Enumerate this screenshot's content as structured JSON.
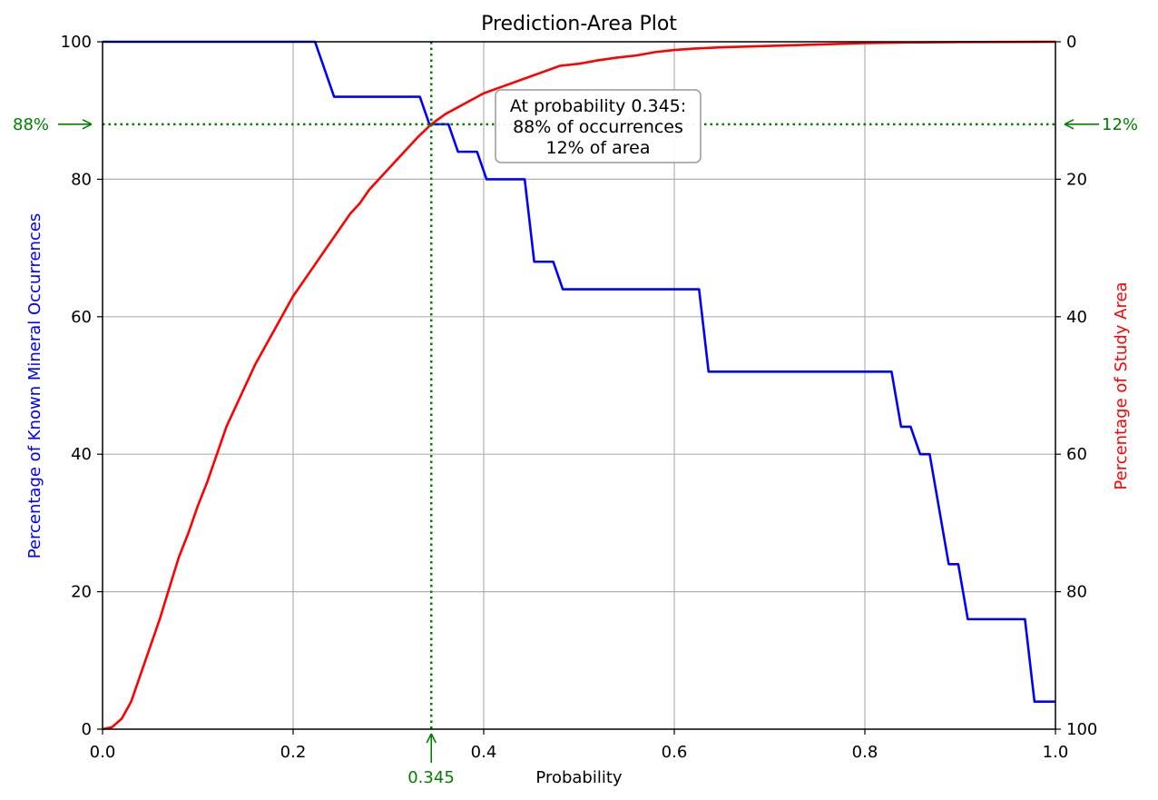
{
  "chart_data": {
    "type": "line",
    "title": "Prediction-Area Plot",
    "xlabel": "Probability",
    "ylabel_left": "Percentage of Known Mineral Occurrences",
    "ylabel_right": "Percentage of Study Area",
    "xlim": [
      0,
      1
    ],
    "ylim_left": [
      0,
      100
    ],
    "ylim_right": [
      100,
      0
    ],
    "grid": true,
    "x_ticks": [
      "0.0",
      "0.2",
      "0.4",
      "0.6",
      "0.8",
      "1.0"
    ],
    "y_ticks_left": [
      "0",
      "20",
      "40",
      "60",
      "80",
      "100"
    ],
    "y_ticks_right": [
      "100",
      "80",
      "60",
      "40",
      "20",
      "0"
    ],
    "colors": {
      "occurrences": "#0000ff",
      "area": "#ff0000",
      "intersection": "#008000",
      "grid": "#b0b0b0"
    },
    "series": [
      {
        "axis": "left",
        "color": "#0000ff",
        "points": [
          [
            0,
            100
          ],
          [
            0.223,
            100
          ],
          [
            0.243,
            92
          ],
          [
            0.333,
            92
          ],
          [
            0.343,
            88
          ],
          [
            0.363,
            88
          ],
          [
            0.373,
            84
          ],
          [
            0.393,
            84
          ],
          [
            0.403,
            80
          ],
          [
            0.443,
            80
          ],
          [
            0.453,
            68
          ],
          [
            0.473,
            68
          ],
          [
            0.483,
            64
          ],
          [
            0.626,
            64
          ],
          [
            0.636,
            52
          ],
          [
            0.828,
            52
          ],
          [
            0.838,
            44
          ],
          [
            0.848,
            44
          ],
          [
            0.858,
            40
          ],
          [
            0.868,
            40
          ],
          [
            0.888,
            24
          ],
          [
            0.898,
            24
          ],
          [
            0.908,
            16
          ],
          [
            0.968,
            16
          ],
          [
            0.978,
            4
          ],
          [
            1.0,
            4
          ]
        ]
      },
      {
        "axis": "right",
        "color": "#ff0000",
        "points": [
          [
            0,
            100
          ],
          [
            0.01,
            99.7
          ],
          [
            0.02,
            98.5
          ],
          [
            0.03,
            96
          ],
          [
            0.04,
            92
          ],
          [
            0.05,
            88
          ],
          [
            0.06,
            84
          ],
          [
            0.07,
            79.5
          ],
          [
            0.08,
            75
          ],
          [
            0.09,
            71.5
          ],
          [
            0.1,
            67.5
          ],
          [
            0.11,
            64
          ],
          [
            0.12,
            60
          ],
          [
            0.13,
            56
          ],
          [
            0.14,
            53
          ],
          [
            0.15,
            50
          ],
          [
            0.16,
            47
          ],
          [
            0.17,
            44.5
          ],
          [
            0.18,
            42
          ],
          [
            0.19,
            39.5
          ],
          [
            0.2,
            37
          ],
          [
            0.21,
            35
          ],
          [
            0.22,
            33
          ],
          [
            0.23,
            31
          ],
          [
            0.24,
            29
          ],
          [
            0.25,
            27
          ],
          [
            0.26,
            25
          ],
          [
            0.27,
            23.5
          ],
          [
            0.28,
            21.5
          ],
          [
            0.29,
            20
          ],
          [
            0.3,
            18.5
          ],
          [
            0.31,
            17
          ],
          [
            0.32,
            15.5
          ],
          [
            0.33,
            14
          ],
          [
            0.345,
            12
          ],
          [
            0.36,
            10.5
          ],
          [
            0.38,
            9
          ],
          [
            0.4,
            7.5
          ],
          [
            0.42,
            6.5
          ],
          [
            0.44,
            5.5
          ],
          [
            0.46,
            4.5
          ],
          [
            0.48,
            3.5
          ],
          [
            0.5,
            3.2
          ],
          [
            0.52,
            2.7
          ],
          [
            0.54,
            2.3
          ],
          [
            0.56,
            2.0
          ],
          [
            0.58,
            1.5
          ],
          [
            0.6,
            1.2
          ],
          [
            0.62,
            1.0
          ],
          [
            0.65,
            0.8
          ],
          [
            0.7,
            0.6
          ],
          [
            0.75,
            0.4
          ],
          [
            0.8,
            0.2
          ],
          [
            0.85,
            0.1
          ],
          [
            0.9,
            0.05
          ],
          [
            1.0,
            0
          ]
        ]
      }
    ],
    "intersection": {
      "probability": 0.345,
      "occurrence_percent": 88,
      "area_percent": 12,
      "x_label": "0.345",
      "left_label": "88%",
      "right_label": "12%"
    },
    "annotation": {
      "lines": [
        "At probability 0.345:",
        "88% of occurrences",
        "12% of area"
      ]
    }
  }
}
